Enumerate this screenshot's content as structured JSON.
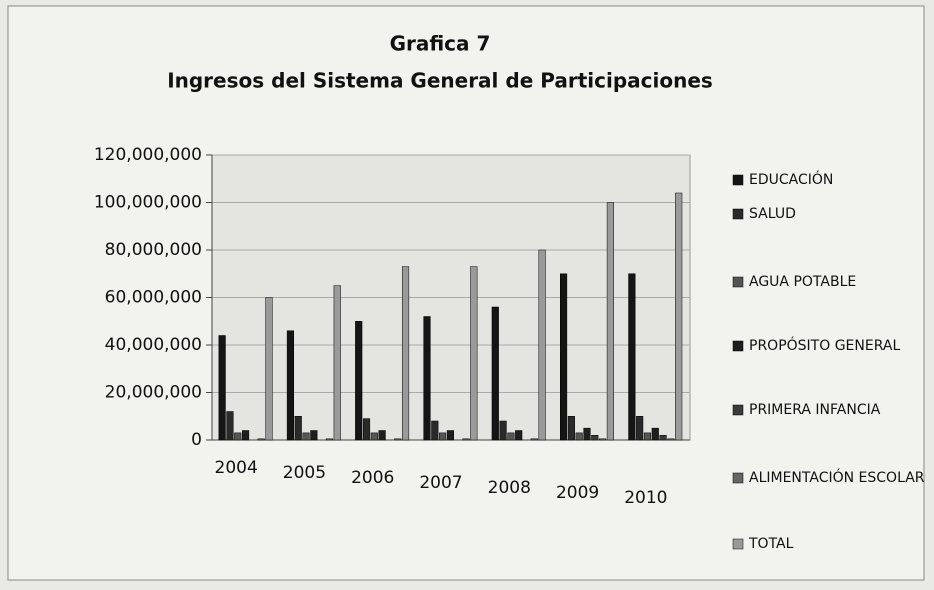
{
  "chart_data": {
    "type": "bar",
    "title": "Grafica 7",
    "subtitle": "Ingresos del Sistema General de Participaciones",
    "categories": [
      "2004",
      "2005",
      "2006",
      "2007",
      "2008",
      "2009",
      "2010"
    ],
    "series": [
      {
        "name": "EDUCACIÓN",
        "color": "#151515",
        "values": [
          44000000,
          46000000,
          50000000,
          52000000,
          56000000,
          70000000,
          70000000
        ]
      },
      {
        "name": "SALUD",
        "color": "#2a2a2a",
        "values": [
          12000000,
          10000000,
          9000000,
          8000000,
          8000000,
          10000000,
          10000000
        ]
      },
      {
        "name": "AGUA POTABLE",
        "color": "#555555",
        "values": [
          3000000,
          3000000,
          3000000,
          3000000,
          3000000,
          3000000,
          3000000
        ]
      },
      {
        "name": "PROPÓSITO GENERAL",
        "color": "#1e1e1e",
        "values": [
          4000000,
          4000000,
          4000000,
          4000000,
          4000000,
          5000000,
          5000000
        ]
      },
      {
        "name": "PRIMERA INFANCIA",
        "color": "#3a3a3a",
        "values": [
          0,
          0,
          0,
          0,
          0,
          2000000,
          2000000
        ]
      },
      {
        "name": "ALIMENTACIÓN ESCOLAR",
        "color": "#666666",
        "values": [
          500000,
          500000,
          500000,
          500000,
          500000,
          500000,
          500000
        ]
      },
      {
        "name": "TOTAL",
        "color": "#9a9a9a",
        "values": [
          60000000,
          65000000,
          73000000,
          73000000,
          80000000,
          100000000,
          104000000
        ]
      }
    ],
    "ylim": [
      0,
      120000000
    ],
    "yticks": [
      0,
      {
        "value": 20000000,
        "label": "20,000,000"
      },
      {
        "value": 40000000,
        "label": "40,000,000"
      },
      {
        "value": 60000000,
        "label": "60,000,000"
      },
      {
        "value": 80000000,
        "label": "80,000,000"
      },
      {
        "value": 100000000,
        "label": "100,000,000"
      },
      {
        "value": 120000000,
        "label": "120,000,000"
      }
    ],
    "grid": true,
    "legend": "right"
  }
}
